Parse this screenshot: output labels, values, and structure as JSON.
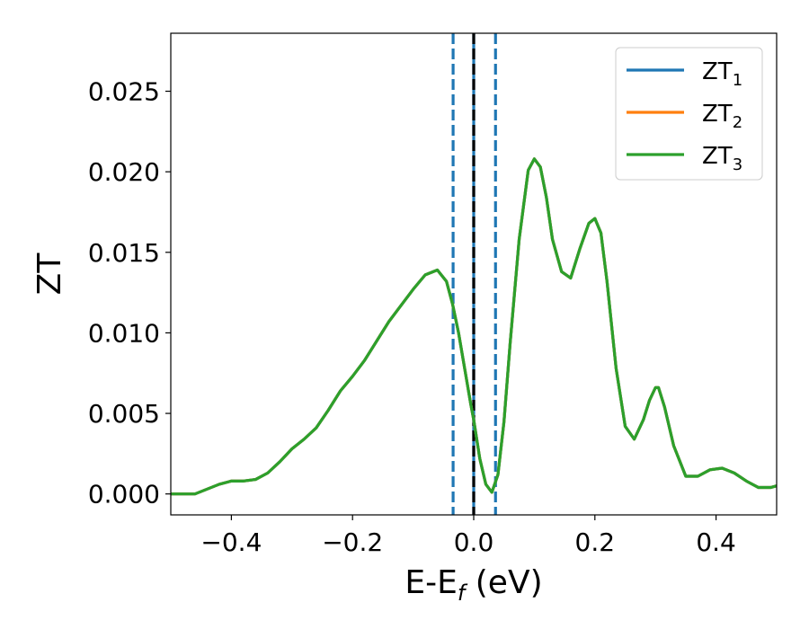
{
  "chart_data": {
    "type": "line",
    "xlabel": "E-E",
    "xlabel_sub": "f",
    "xlabel_unit": " (eV)",
    "ylabel": "ZT",
    "xlim": [
      -0.5,
      0.5
    ],
    "ylim": [
      -0.0013,
      0.0286
    ],
    "xticks": [
      -0.4,
      -0.2,
      0.0,
      0.2,
      0.4
    ],
    "xtick_labels": [
      "−0.4",
      "−0.2",
      "0.0",
      "0.2",
      "0.4"
    ],
    "yticks": [
      0.0,
      0.005,
      0.01,
      0.015,
      0.02,
      0.025
    ],
    "ytick_labels": [
      "0.000",
      "0.005",
      "0.010",
      "0.015",
      "0.020",
      "0.025"
    ],
    "legend_position": "top-right",
    "vlines": [
      {
        "x": -0.034,
        "style": "dashed",
        "color": "#1f77b4"
      },
      {
        "x": 0.0,
        "style": "solid",
        "color": "#1f77b4"
      },
      {
        "x": 0.0,
        "style": "dashed",
        "color": "#000000"
      },
      {
        "x": 0.036,
        "style": "dashed",
        "color": "#1f77b4"
      }
    ],
    "x": [
      -0.5,
      -0.46,
      -0.44,
      -0.42,
      -0.4,
      -0.38,
      -0.36,
      -0.34,
      -0.32,
      -0.3,
      -0.28,
      -0.26,
      -0.24,
      -0.22,
      -0.2,
      -0.18,
      -0.16,
      -0.14,
      -0.12,
      -0.1,
      -0.08,
      -0.06,
      -0.045,
      -0.035,
      -0.025,
      -0.015,
      -0.005,
      0.0,
      0.01,
      0.02,
      0.03,
      0.04,
      0.05,
      0.06,
      0.075,
      0.09,
      0.1,
      0.11,
      0.12,
      0.13,
      0.145,
      0.16,
      0.175,
      0.19,
      0.2,
      0.21,
      0.22,
      0.235,
      0.25,
      0.265,
      0.28,
      0.29,
      0.3,
      0.305,
      0.315,
      0.33,
      0.35,
      0.37,
      0.39,
      0.41,
      0.43,
      0.45,
      0.47,
      0.49,
      0.5
    ],
    "series": [
      {
        "name": "ZT",
        "sub": "1",
        "color": "#1f77b4",
        "values": [
          0.0,
          0.0,
          0.0003,
          0.0006,
          0.0008,
          0.0008,
          0.0009,
          0.0013,
          0.002,
          0.0028,
          0.0034,
          0.0041,
          0.0052,
          0.0064,
          0.0073,
          0.0083,
          0.0095,
          0.0107,
          0.0117,
          0.0127,
          0.0136,
          0.0139,
          0.0132,
          0.0118,
          0.01,
          0.0078,
          0.0056,
          0.0046,
          0.0022,
          0.0006,
          0.0001,
          0.0012,
          0.0045,
          0.0093,
          0.0158,
          0.0201,
          0.0208,
          0.0203,
          0.0184,
          0.0158,
          0.0138,
          0.0134,
          0.0152,
          0.0168,
          0.0171,
          0.0162,
          0.0132,
          0.0078,
          0.0042,
          0.0034,
          0.0046,
          0.0058,
          0.0066,
          0.0066,
          0.0054,
          0.003,
          0.0011,
          0.0011,
          0.0015,
          0.0016,
          0.0013,
          0.0008,
          0.0004,
          0.0004,
          0.0005
        ]
      },
      {
        "name": "ZT",
        "sub": "2",
        "color": "#ff7f0e",
        "values": [
          0.0,
          0.0,
          0.0003,
          0.0006,
          0.0008,
          0.0008,
          0.0009,
          0.0013,
          0.002,
          0.0028,
          0.0034,
          0.0041,
          0.0052,
          0.0064,
          0.0073,
          0.0083,
          0.0095,
          0.0107,
          0.0117,
          0.0127,
          0.0136,
          0.0139,
          0.0132,
          0.0118,
          0.01,
          0.0078,
          0.0056,
          0.0046,
          0.0022,
          0.0006,
          0.0001,
          0.0012,
          0.0045,
          0.0093,
          0.0158,
          0.0201,
          0.0208,
          0.0203,
          0.0184,
          0.0158,
          0.0138,
          0.0134,
          0.0152,
          0.0168,
          0.0171,
          0.0162,
          0.0132,
          0.0078,
          0.0042,
          0.0034,
          0.0046,
          0.0058,
          0.0066,
          0.0066,
          0.0054,
          0.003,
          0.0011,
          0.0011,
          0.0015,
          0.0016,
          0.0013,
          0.0008,
          0.0004,
          0.0004,
          0.0005
        ]
      },
      {
        "name": "ZT",
        "sub": "3",
        "color": "#2ca02c",
        "values": [
          0.0,
          0.0,
          0.0003,
          0.0006,
          0.0008,
          0.0008,
          0.0009,
          0.0013,
          0.002,
          0.0028,
          0.0034,
          0.0041,
          0.0052,
          0.0064,
          0.0073,
          0.0083,
          0.0095,
          0.0107,
          0.0117,
          0.0127,
          0.0136,
          0.0139,
          0.0132,
          0.0118,
          0.01,
          0.0078,
          0.0056,
          0.0046,
          0.0022,
          0.0006,
          0.0001,
          0.0012,
          0.0045,
          0.0093,
          0.0158,
          0.0201,
          0.0208,
          0.0203,
          0.0184,
          0.0158,
          0.0138,
          0.0134,
          0.0152,
          0.0168,
          0.0171,
          0.0162,
          0.0132,
          0.0078,
          0.0042,
          0.0034,
          0.0046,
          0.0058,
          0.0066,
          0.0066,
          0.0054,
          0.003,
          0.0011,
          0.0011,
          0.0015,
          0.0016,
          0.0013,
          0.0008,
          0.0004,
          0.0004,
          0.0005
        ]
      }
    ]
  }
}
